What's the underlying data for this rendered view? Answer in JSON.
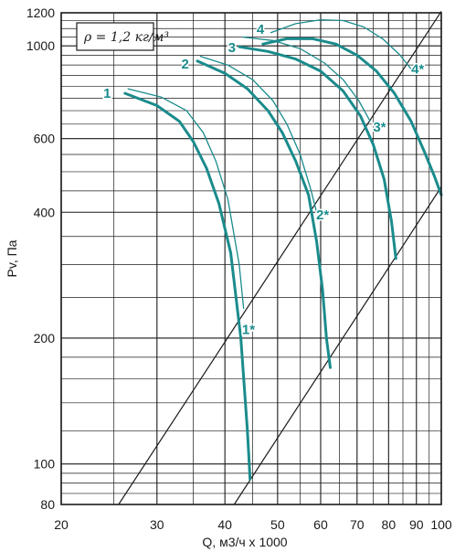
{
  "chart_data": {
    "type": "line",
    "xscale": "log",
    "yscale": "log",
    "xlim": [
      20,
      100
    ],
    "ylim": [
      80,
      1200
    ],
    "xlabel": "Q, м3/ч x 1000",
    "ylabel": "Pv, Па",
    "x_ticks": [
      "20",
      "30",
      "40",
      "50",
      "60",
      "70",
      "80",
      "90",
      "100"
    ],
    "y_ticks": [
      "80",
      "100",
      "200",
      "400",
      "600",
      "1000",
      "1200"
    ],
    "x_tick_values": [
      20,
      30,
      40,
      50,
      60,
      70,
      80,
      90,
      100
    ],
    "y_tick_values": [
      80,
      100,
      200,
      400,
      600,
      1000,
      1200
    ],
    "x_grid": [
      20,
      25,
      30,
      35,
      40,
      45,
      50,
      55,
      60,
      65,
      70,
      75,
      80,
      85,
      90,
      95,
      100
    ],
    "y_grid": [
      80,
      85,
      90,
      95,
      100,
      120,
      140,
      160,
      180,
      200,
      250,
      300,
      350,
      400,
      450,
      500,
      550,
      600,
      650,
      700,
      750,
      800,
      850,
      900,
      950,
      1000,
      1050,
      1100,
      1150,
      1200
    ],
    "grid": true,
    "annotation": "ρ = 1,2 кг/м³",
    "colors": {
      "curve": "#1b8b8c",
      "line": "#1a1a1a",
      "grid": "#1a1a1a"
    },
    "series": [
      {
        "name": "1",
        "role": "main",
        "points": [
          [
            26.2,
            770
          ],
          [
            30,
            720
          ],
          [
            33,
            660
          ],
          [
            35,
            590
          ],
          [
            37,
            510
          ],
          [
            39,
            420
          ],
          [
            41,
            320
          ],
          [
            42.8,
            200
          ],
          [
            44,
            120
          ],
          [
            44.5,
            92
          ]
        ]
      },
      {
        "name": "2",
        "role": "main",
        "points": [
          [
            35.6,
            920
          ],
          [
            40,
            860
          ],
          [
            44,
            790
          ],
          [
            48,
            700
          ],
          [
            51,
            620
          ],
          [
            54,
            530
          ],
          [
            57,
            440
          ],
          [
            59,
            340
          ],
          [
            60.5,
            260
          ],
          [
            61.5,
            200
          ],
          [
            62.5,
            170
          ]
        ]
      },
      {
        "name": "3",
        "role": "main",
        "points": [
          [
            42.5,
            995
          ],
          [
            48,
            970
          ],
          [
            54,
            930
          ],
          [
            60,
            870
          ],
          [
            66,
            780
          ],
          [
            71,
            680
          ],
          [
            75,
            580
          ],
          [
            78.5,
            480
          ],
          [
            81,
            380
          ],
          [
            82.5,
            310
          ]
        ]
      },
      {
        "name": "4",
        "role": "main",
        "points": [
          [
            47,
            1010
          ],
          [
            52,
            1040
          ],
          [
            58,
            1040
          ],
          [
            64,
            1010
          ],
          [
            70,
            950
          ],
          [
            76,
            870
          ],
          [
            82,
            770
          ],
          [
            88,
            660
          ],
          [
            93,
            560
          ],
          [
            97,
            490
          ],
          [
            100,
            440
          ]
        ]
      },
      {
        "name": "1*",
        "role": "thin",
        "points": [
          [
            26.5,
            790
          ],
          [
            30.5,
            755
          ],
          [
            34,
            700
          ],
          [
            36.5,
            620
          ],
          [
            38.5,
            530
          ],
          [
            40.5,
            430
          ],
          [
            42.5,
            300
          ],
          [
            43.3,
            235
          ]
        ]
      },
      {
        "name": "2*",
        "role": "thin",
        "points": [
          [
            36,
            945
          ],
          [
            40.5,
            900
          ],
          [
            45,
            830
          ],
          [
            49,
            740
          ],
          [
            52,
            650
          ],
          [
            55,
            550
          ],
          [
            57.5,
            455
          ],
          [
            59,
            400
          ]
        ]
      },
      {
        "name": "3*",
        "role": "thin",
        "points": [
          [
            43,
            1050
          ],
          [
            49,
            1030
          ],
          [
            55,
            985
          ],
          [
            61,
            910
          ],
          [
            66,
            830
          ],
          [
            70.5,
            740
          ],
          [
            74,
            660
          ]
        ]
      },
      {
        "name": "4*",
        "role": "thin",
        "points": [
          [
            48.5,
            1075
          ],
          [
            54,
            1130
          ],
          [
            60,
            1155
          ],
          [
            66,
            1150
          ],
          [
            72,
            1110
          ],
          [
            78,
            1040
          ],
          [
            84,
            950
          ],
          [
            88,
            880
          ]
        ]
      },
      {
        "role": "system",
        "points": [
          [
            25.5,
            80
          ],
          [
            100,
            1210
          ]
        ]
      },
      {
        "role": "system",
        "points": [
          [
            41.6,
            80
          ],
          [
            100,
            460
          ]
        ]
      }
    ],
    "labels": [
      {
        "text": "1",
        "x": 24.3,
        "y": 770
      },
      {
        "text": "2",
        "x": 33.8,
        "y": 905
      },
      {
        "text": "3",
        "x": 41.2,
        "y": 990
      },
      {
        "text": "4",
        "x": 46.5,
        "y": 1095
      },
      {
        "text": "1*",
        "x": 44.2,
        "y": 210
      },
      {
        "text": "2*",
        "x": 60.5,
        "y": 395
      },
      {
        "text": "3*",
        "x": 77.0,
        "y": 640
      },
      {
        "text": "4*",
        "x": 90.5,
        "y": 880
      }
    ]
  }
}
